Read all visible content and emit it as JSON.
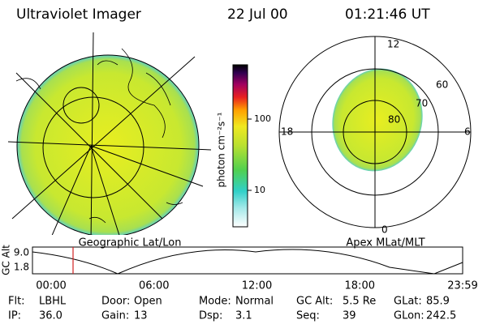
{
  "header": {
    "title": "Ultraviolet Imager",
    "date": "22 Jul 00",
    "time": "01:21:46 UT"
  },
  "colorbar": {
    "label": "photon cm⁻²s⁻¹",
    "ticks": [
      "100",
      "10"
    ]
  },
  "polar_labels": {
    "mlt": [
      "12",
      "18",
      "6",
      "0"
    ],
    "mlat": [
      "60",
      "70",
      "80"
    ]
  },
  "captions": {
    "left": "Geographic Lat/Lon",
    "right": "Apex MLat/MLT"
  },
  "altitude_plot": {
    "ylabel": "GC Alt",
    "yticks": [
      "9.0",
      "1.8"
    ],
    "xticks": [
      "00:00",
      "06:00",
      "12:00",
      "18:00",
      "23:59"
    ]
  },
  "info": {
    "rows": [
      [
        [
          "Flt:",
          "LBHL"
        ],
        [
          "Door:",
          "Open"
        ],
        [
          "Mode:",
          "Normal"
        ],
        [
          "GC Alt:",
          "5.5 Re"
        ],
        [
          "GLat:",
          "85.9"
        ]
      ],
      [
        [
          "IP:",
          "36.0"
        ],
        [
          "Gain:",
          "13"
        ],
        [
          "Dsp:",
          "3.1"
        ],
        [
          "Seq:",
          "39"
        ],
        [
          "GLon:",
          "242.5"
        ]
      ]
    ]
  }
}
